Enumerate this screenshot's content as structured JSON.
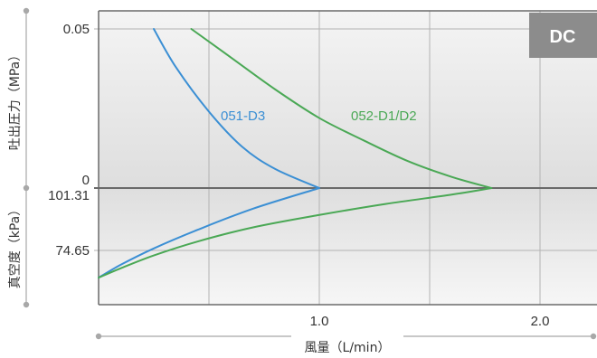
{
  "chart_data": {
    "type": "line",
    "badge": "DC",
    "colors": {
      "d3": "#3b8fd4",
      "d1d2": "#4aa855",
      "grid": "#b3b3b3",
      "badge": "#8c8c8c",
      "axis": "#6a6a6a"
    },
    "x_axis": {
      "label": "風量（L/min）",
      "range": [
        0,
        2.2
      ],
      "ticks": [
        {
          "value": 1.0,
          "label": "1.0"
        },
        {
          "value": 2.0,
          "label": "2.0"
        }
      ],
      "grid": [
        0.5,
        1.0,
        1.5,
        2.0
      ]
    },
    "y_top": {
      "label": "吐出圧力（MPa）",
      "unit": "MPa",
      "range": [
        0,
        0.05
      ],
      "ticks": [
        {
          "value": 0.05,
          "label": "0.05"
        },
        {
          "value": 0,
          "label": "0"
        }
      ]
    },
    "y_bottom": {
      "label": "真空度（kPa）",
      "unit": "kPa",
      "range": [
        101.31,
        63
      ],
      "ticks": [
        {
          "value": 101.31,
          "label": "101.31"
        },
        {
          "value": 74.65,
          "label": "74.65"
        }
      ]
    },
    "series": [
      {
        "name": "051-D3",
        "color_key": "d3",
        "pressure": [
          [
            0.25,
            0.05
          ],
          [
            0.35,
            0.038
          ],
          [
            0.5,
            0.024
          ],
          [
            0.65,
            0.013
          ],
          [
            0.8,
            0.006
          ],
          [
            1.0,
            0.0
          ]
        ],
        "vacuum": [
          [
            0,
            63.0
          ],
          [
            0.1,
            68.5
          ],
          [
            0.25,
            75.5
          ],
          [
            0.45,
            83.5
          ],
          [
            0.7,
            92.5
          ],
          [
            1.0,
            101.31
          ]
        ]
      },
      {
        "name": "052-D1/D2",
        "color_key": "d1d2",
        "pressure": [
          [
            0.42,
            0.05
          ],
          [
            0.6,
            0.041
          ],
          [
            0.8,
            0.031
          ],
          [
            1.0,
            0.022
          ],
          [
            1.2,
            0.015
          ],
          [
            1.4,
            0.0085
          ],
          [
            1.6,
            0.0035
          ],
          [
            1.78,
            0.0
          ]
        ],
        "vacuum": [
          [
            0,
            63.0
          ],
          [
            0.1,
            67.0
          ],
          [
            0.25,
            72.5
          ],
          [
            0.45,
            78.5
          ],
          [
            0.7,
            84.5
          ],
          [
            1.0,
            89.8
          ],
          [
            1.3,
            94.5
          ],
          [
            1.6,
            98.5
          ],
          [
            1.78,
            101.31
          ]
        ]
      }
    ]
  }
}
